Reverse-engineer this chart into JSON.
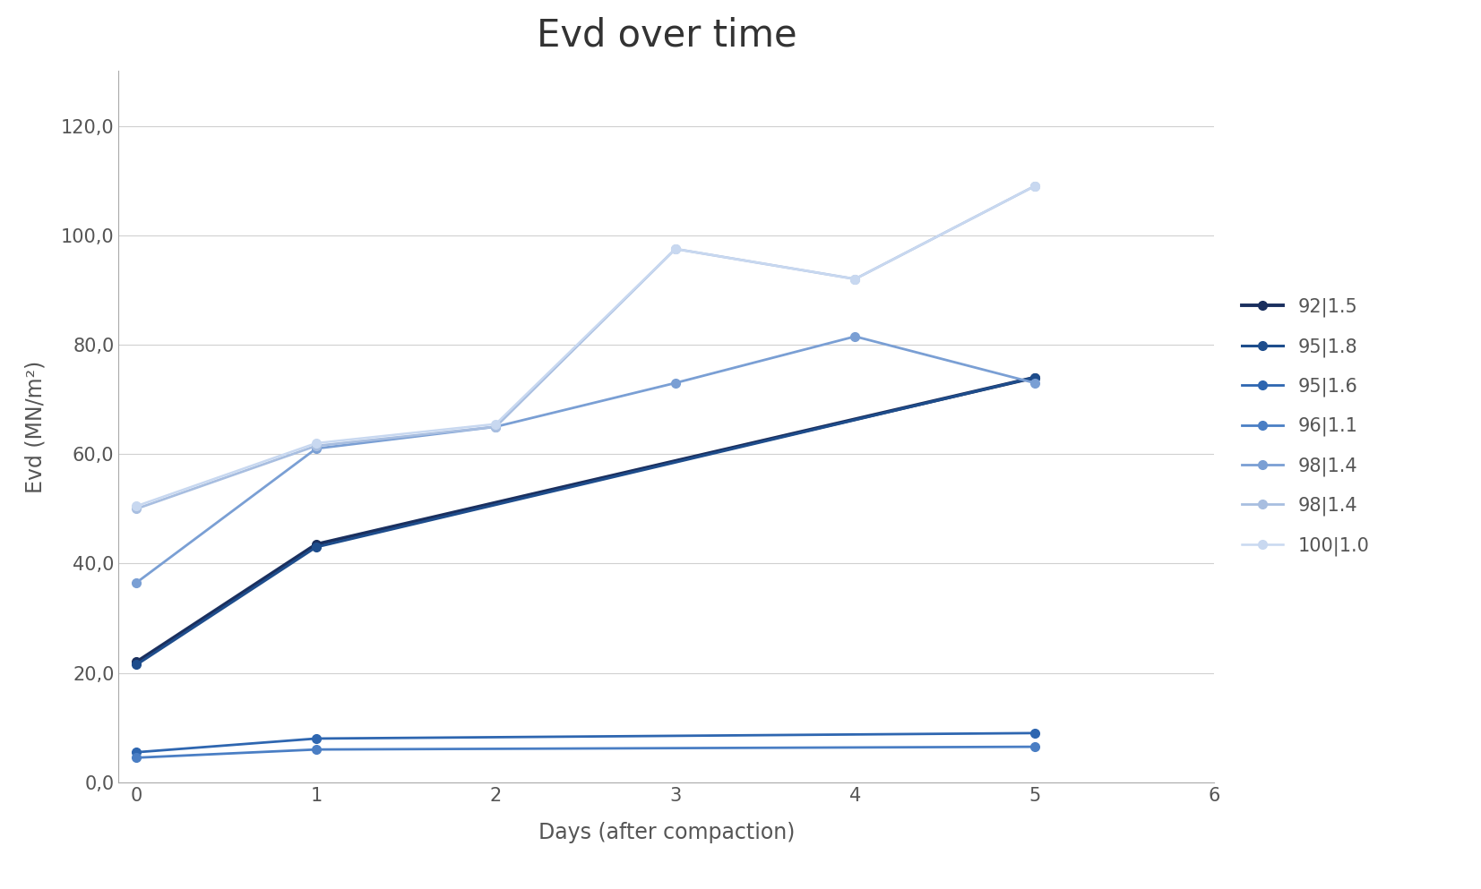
{
  "title": "Evd over time",
  "xlabel": "Days (after compaction)",
  "ylabel": "Evd (MN/m²)",
  "xlim": [
    -0.1,
    6
  ],
  "ylim": [
    0,
    130
  ],
  "yticks": [
    0,
    20,
    40,
    60,
    80,
    100,
    120
  ],
  "xticks": [
    0,
    1,
    2,
    3,
    4,
    5,
    6
  ],
  "series": [
    {
      "label": "92|1.5",
      "color": "#1a2f5e",
      "linewidth": 2.8,
      "x": [
        0,
        1,
        5
      ],
      "y": [
        22.0,
        43.5,
        74.0
      ]
    },
    {
      "label": "95|1.8",
      "color": "#1e4d8c",
      "linewidth": 2.2,
      "x": [
        0,
        1,
        5
      ],
      "y": [
        21.5,
        43.0,
        74.0
      ]
    },
    {
      "label": "95|1.6",
      "color": "#2e66b0",
      "linewidth": 2.0,
      "x": [
        0,
        1,
        5
      ],
      "y": [
        5.5,
        8.0,
        9.0
      ]
    },
    {
      "label": "96|1.1",
      "color": "#4a7ec4",
      "linewidth": 2.0,
      "x": [
        0,
        1,
        5
      ],
      "y": [
        4.5,
        6.0,
        6.5
      ]
    },
    {
      "label": "98|1.4",
      "color": "#7a9fd4",
      "linewidth": 2.0,
      "x": [
        0,
        1,
        2,
        3,
        4,
        5
      ],
      "y": [
        36.5,
        61.0,
        65.0,
        73.0,
        81.5,
        73.0
      ]
    },
    {
      "label": "98|1.4",
      "color": "#a8bee0",
      "linewidth": 2.0,
      "x": [
        0,
        1,
        2,
        3,
        4,
        5
      ],
      "y": [
        50.0,
        61.5,
        65.0,
        97.5,
        92.0,
        109.0
      ]
    },
    {
      "label": "100|1.0",
      "color": "#c8d8f0",
      "linewidth": 1.8,
      "x": [
        0,
        1,
        2,
        3,
        4,
        5
      ],
      "y": [
        50.5,
        62.0,
        65.5,
        97.5,
        92.0,
        109.0
      ]
    }
  ],
  "bg_color": "#ffffff",
  "grid_color": "#d0d0d0",
  "title_fontsize": 30,
  "label_fontsize": 17,
  "tick_fontsize": 15,
  "legend_fontsize": 15
}
